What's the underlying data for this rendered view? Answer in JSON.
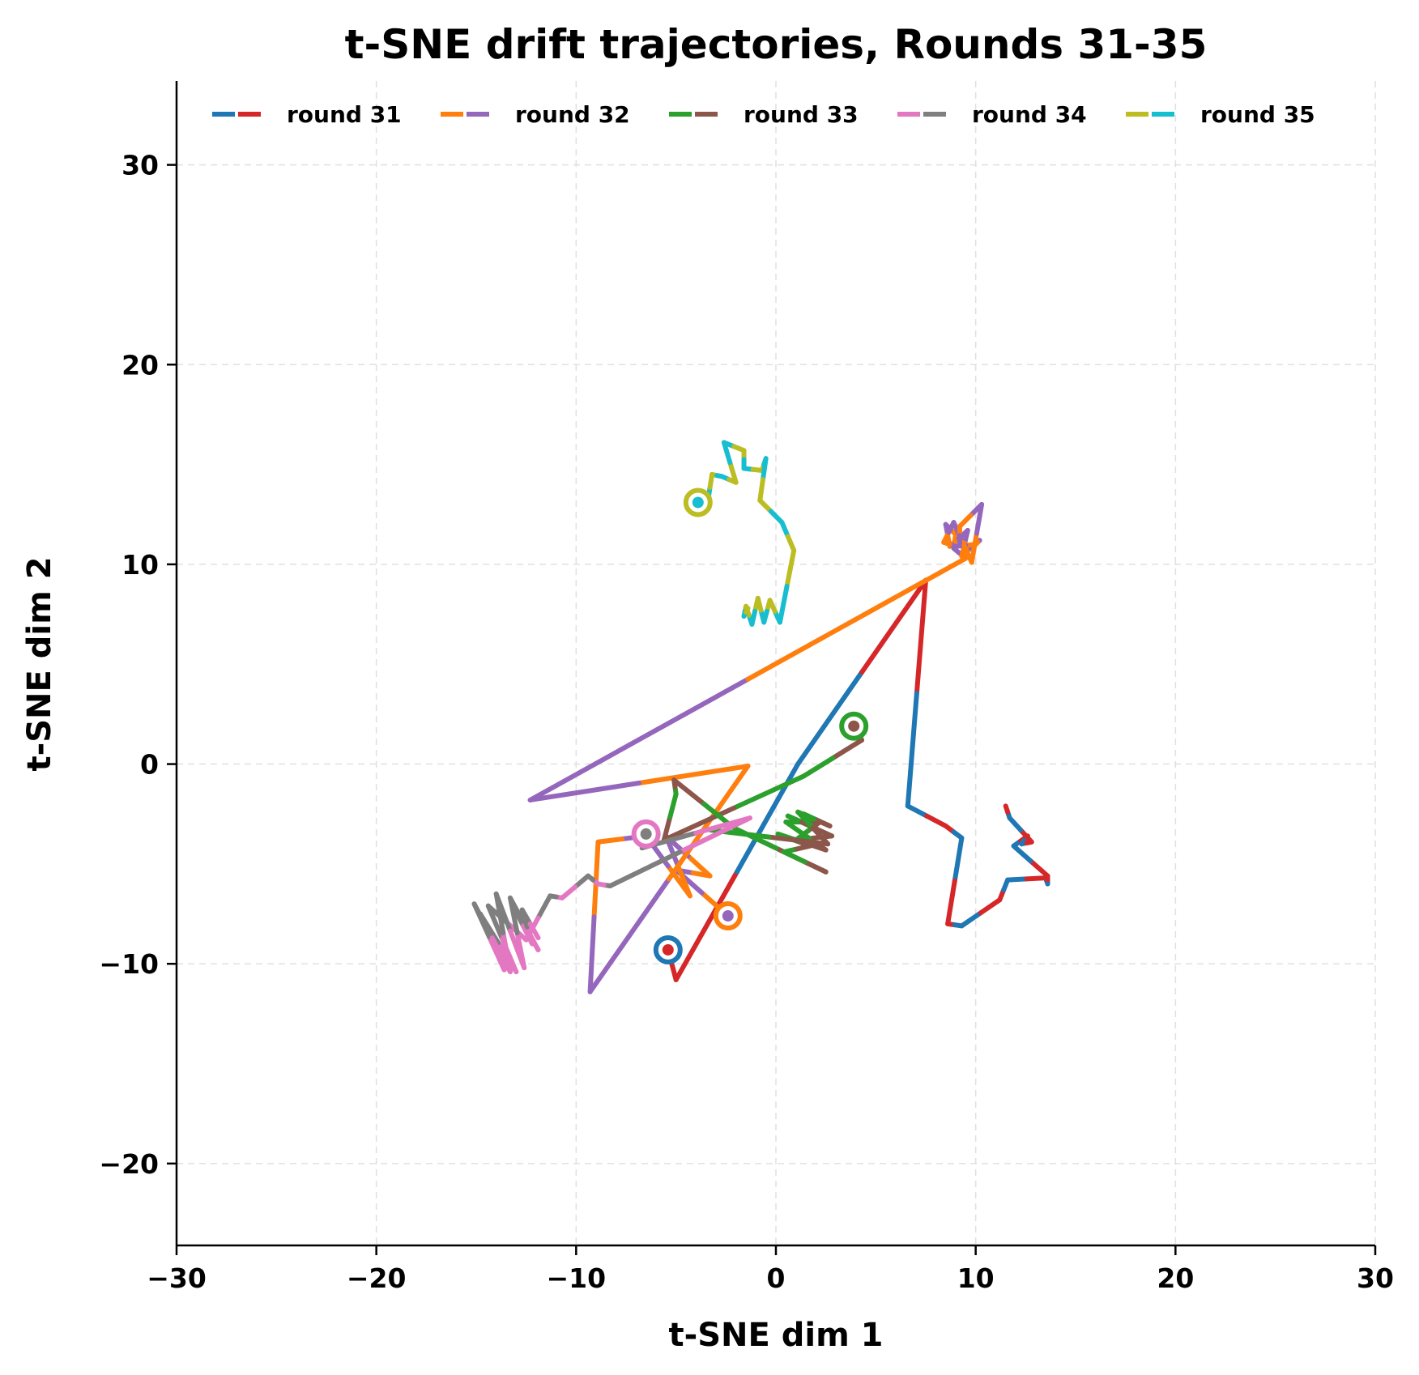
{
  "chart_data": {
    "type": "line",
    "title": "t-SNE drift trajectories, Rounds 31-35",
    "xlabel": "t-SNE dim 1",
    "ylabel": "t-SNE dim 2",
    "xlim": [
      -30,
      30
    ],
    "ylim": [
      -24.1,
      34.2
    ],
    "xticks": [
      -30,
      -20,
      -10,
      0,
      10,
      20,
      30
    ],
    "yticks": [
      -20,
      -10,
      0,
      10,
      20,
      30
    ],
    "xtick_labels": [
      "−30",
      "−20",
      "−10",
      "0",
      "10",
      "20",
      "30"
    ],
    "ytick_labels": [
      "−20",
      "−10",
      "0",
      "10",
      "20",
      "30"
    ],
    "grid": true,
    "legend_position": "upper center, single row",
    "series": [
      {
        "name": "round 31",
        "colors": [
          "#1f77b4",
          "#d62728"
        ],
        "start": [
          -5.4,
          -9.3
        ],
        "points": [
          [
            -5.4,
            -9.3
          ],
          [
            -5.0,
            -10.8
          ],
          [
            1.1,
            0.0
          ],
          [
            7.5,
            9.2
          ],
          [
            6.6,
            -2.1
          ],
          [
            8.5,
            -3.1
          ],
          [
            9.3,
            -3.7
          ],
          [
            8.6,
            -8.0
          ],
          [
            9.3,
            -8.1
          ],
          [
            11.2,
            -6.8
          ],
          [
            11.6,
            -5.8
          ],
          [
            13.5,
            -5.7
          ],
          [
            13.6,
            -6.0
          ],
          [
            13.6,
            -5.6
          ],
          [
            11.9,
            -4.1
          ],
          [
            12.6,
            -3.6
          ],
          [
            12.3,
            -4.0
          ],
          [
            12.8,
            -3.9
          ],
          [
            11.7,
            -2.7
          ],
          [
            11.5,
            -2.1
          ]
        ]
      },
      {
        "name": "round 32",
        "colors": [
          "#ff7f0e",
          "#9467bd"
        ],
        "start": [
          -2.4,
          -7.6
        ],
        "points": [
          [
            -2.4,
            -7.6
          ],
          [
            -5.0,
            -5.3
          ],
          [
            -3.3,
            -5.6
          ],
          [
            -5.5,
            -3.6
          ],
          [
            -4.3,
            -6.6
          ],
          [
            -6.5,
            -3.6
          ],
          [
            -8.9,
            -3.9
          ],
          [
            -9.3,
            -11.4
          ],
          [
            -1.4,
            -0.1
          ],
          [
            -12.3,
            -1.8
          ],
          [
            9.5,
            10.3
          ],
          [
            8.9,
            10.8
          ],
          [
            9.0,
            11.5
          ],
          [
            8.5,
            12.0
          ],
          [
            8.7,
            10.9
          ],
          [
            9.6,
            11.7
          ],
          [
            9.3,
            10.4
          ],
          [
            10.2,
            11.2
          ],
          [
            10.0,
            11.0
          ],
          [
            9.0,
            10.9
          ],
          [
            8.4,
            11.1
          ],
          [
            8.9,
            12.1
          ],
          [
            9.8,
            10.1
          ],
          [
            10.3,
            13.0
          ],
          [
            9.2,
            11.9
          ],
          [
            9.2,
            11.0
          ]
        ]
      },
      {
        "name": "round 33",
        "colors": [
          "#2ca02c",
          "#8c564b"
        ],
        "start": [
          3.9,
          1.9
        ],
        "points": [
          [
            3.9,
            1.9
          ],
          [
            4.3,
            1.2
          ],
          [
            1.4,
            -0.6
          ],
          [
            -5.6,
            -3.8
          ],
          [
            -5.0,
            -1.5
          ],
          [
            -5.1,
            -0.8
          ],
          [
            -2.1,
            -3.2
          ],
          [
            2.5,
            -5.4
          ],
          [
            0.4,
            -4.4
          ],
          [
            1.7,
            -4.1
          ],
          [
            0.1,
            -3.5
          ],
          [
            2.5,
            -4.3
          ],
          [
            0.5,
            -2.9
          ],
          [
            2.2,
            -2.9
          ],
          [
            1.0,
            -3.8
          ],
          [
            2.8,
            -3.6
          ],
          [
            0.6,
            -2.6
          ],
          [
            2.0,
            -3.2
          ],
          [
            1.4,
            -2.5
          ],
          [
            2.7,
            -3.1
          ],
          [
            1.1,
            -2.4
          ],
          [
            2.6,
            -4.0
          ],
          [
            -3.3,
            -3.3
          ]
        ]
      },
      {
        "name": "round 34",
        "colors": [
          "#e377c2",
          "#7f7f7f"
        ],
        "start": [
          -6.5,
          -3.5
        ],
        "points": [
          [
            -6.5,
            -3.5
          ],
          [
            -6.7,
            -4.2
          ],
          [
            -1.3,
            -2.7
          ],
          [
            -8.3,
            -6.1
          ],
          [
            -8.9,
            -6.0
          ],
          [
            -9.4,
            -5.6
          ],
          [
            -10.7,
            -6.7
          ],
          [
            -11.3,
            -6.6
          ],
          [
            -12.5,
            -8.8
          ],
          [
            -14.4,
            -7.1
          ],
          [
            -13.0,
            -10.4
          ],
          [
            -14.8,
            -7.5
          ],
          [
            -13.6,
            -10.3
          ],
          [
            -15.1,
            -7.0
          ],
          [
            -13.3,
            -10.4
          ],
          [
            -14.0,
            -6.5
          ],
          [
            -12.6,
            -10.2
          ],
          [
            -13.3,
            -6.7
          ],
          [
            -11.9,
            -9.3
          ],
          [
            -13.1,
            -7.2
          ],
          [
            -12.2,
            -9.0
          ],
          [
            -12.7,
            -7.3
          ],
          [
            -11.9,
            -8.7
          ]
        ]
      },
      {
        "name": "round 35",
        "colors": [
          "#bcbd22",
          "#17becf"
        ],
        "start": [
          -3.9,
          13.1
        ],
        "points": [
          [
            -3.9,
            13.1
          ],
          [
            -3.4,
            13.2
          ],
          [
            -3.2,
            14.5
          ],
          [
            -2.7,
            14.4
          ],
          [
            -2.0,
            14.1
          ],
          [
            -2.6,
            16.1
          ],
          [
            -1.6,
            15.7
          ],
          [
            -1.6,
            14.8
          ],
          [
            -0.7,
            14.7
          ],
          [
            -0.5,
            15.3
          ],
          [
            -0.8,
            13.2
          ],
          [
            0.3,
            12.1
          ],
          [
            0.9,
            10.7
          ],
          [
            0.2,
            7.1
          ],
          [
            -0.3,
            8.2
          ],
          [
            -0.6,
            7.1
          ],
          [
            -0.9,
            8.3
          ],
          [
            -1.2,
            7.0
          ],
          [
            -1.5,
            7.9
          ],
          [
            -1.6,
            7.4
          ],
          [
            -1.4,
            7.8
          ]
        ]
      }
    ]
  },
  "title": "t-SNE drift trajectories, Rounds 31-35",
  "xlabel": "t-SNE dim 1",
  "ylabel": "t-SNE dim 2",
  "legend": [
    {
      "label": "round 31",
      "c1": "#1f77b4",
      "c2": "#d62728"
    },
    {
      "label": "round 32",
      "c1": "#ff7f0e",
      "c2": "#9467bd"
    },
    {
      "label": "round 33",
      "c1": "#2ca02c",
      "c2": "#8c564b"
    },
    {
      "label": "round 34",
      "c1": "#e377c2",
      "c2": "#7f7f7f"
    },
    {
      "label": "round 35",
      "c1": "#bcbd22",
      "c2": "#17becf"
    }
  ]
}
